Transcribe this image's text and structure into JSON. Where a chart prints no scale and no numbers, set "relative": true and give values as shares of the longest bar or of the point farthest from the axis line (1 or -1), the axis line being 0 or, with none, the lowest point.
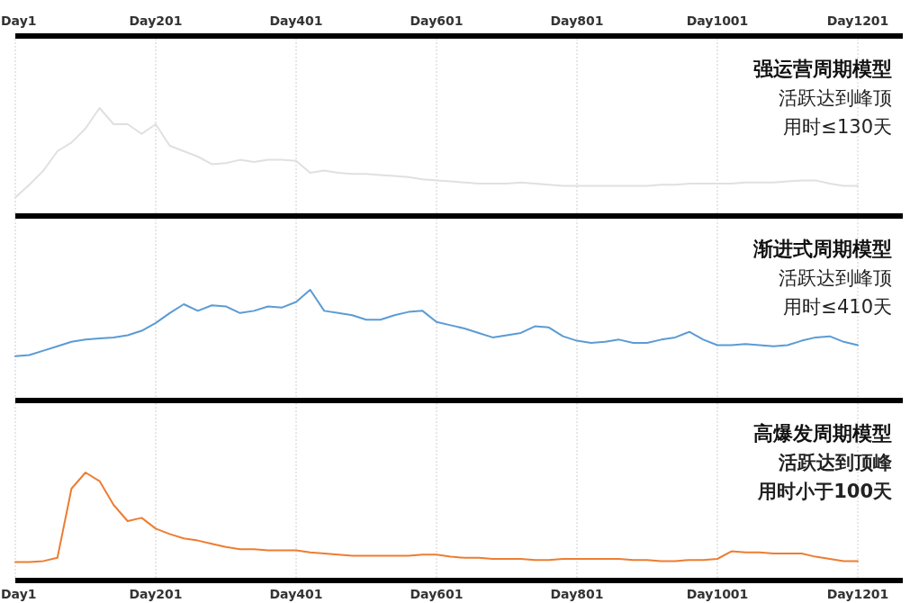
{
  "chart_data": [
    {
      "type": "line",
      "relative": true,
      "title": "强运营周期模型",
      "annotations": [
        "活跃达到峰顶",
        "用时≤130天"
      ],
      "grid": "x",
      "categories": [
        "Day1",
        null,
        null,
        null,
        null,
        null,
        null,
        null,
        null,
        null,
        "Day201",
        null,
        null,
        null,
        null,
        null,
        null,
        null,
        null,
        null,
        "Day401",
        null,
        null,
        null,
        null,
        null,
        null,
        null,
        null,
        null,
        "Day601",
        null,
        null,
        null,
        null,
        null,
        null,
        null,
        null,
        null,
        "Day801",
        null,
        null,
        null,
        null,
        null,
        null,
        null,
        null,
        null,
        "Day1001",
        null,
        null,
        null,
        null,
        null,
        null,
        null,
        null,
        null,
        "Day1201"
      ],
      "series": [
        {
          "color": "#e0e0e0",
          "values": [
            0.17,
            0.29,
            0.42,
            0.6,
            0.68,
            0.81,
            1,
            0.85,
            0.85,
            0.76,
            0.85,
            0.65,
            0.6,
            0.55,
            0.48,
            0.49,
            0.52,
            0.5,
            0.52,
            0.52,
            0.51,
            0.4,
            0.42,
            0.4,
            0.39,
            0.39,
            0.38,
            0.37,
            0.36,
            0.34,
            0.33,
            0.32,
            0.31,
            0.3,
            0.3,
            0.3,
            0.31,
            0.3,
            0.29,
            0.28,
            0.28,
            0.28,
            0.28,
            0.28,
            0.28,
            0.28,
            0.29,
            0.29,
            0.3,
            0.3,
            0.3,
            0.3,
            0.31,
            0.31,
            0.31,
            0.32,
            0.33,
            0.33,
            0.3,
            0.28,
            0.28
          ]
        }
      ]
    },
    {
      "type": "line",
      "relative": true,
      "title": "渐进式周期模型",
      "annotations": [
        "活跃达到峰顶",
        "用时≤410天"
      ],
      "grid": "x",
      "categories": [
        null,
        null,
        null,
        null,
        null,
        null,
        null,
        null,
        null,
        null,
        null,
        null,
        null,
        null,
        null,
        null,
        null,
        null,
        null,
        null,
        null,
        null,
        null,
        null,
        null,
        null,
        null,
        null,
        null,
        null,
        null,
        null,
        null,
        null,
        null,
        null,
        null,
        null,
        null,
        null,
        null,
        null,
        null,
        null,
        null,
        null,
        null,
        null,
        null,
        null,
        null,
        null,
        null,
        null,
        null,
        null,
        null,
        null,
        null,
        null,
        null
      ],
      "series": [
        {
          "color": "#5b9bd5",
          "values": [
            0.4,
            0.41,
            0.45,
            0.49,
            0.53,
            0.55,
            0.56,
            0.57,
            0.59,
            0.63,
            0.7,
            0.79,
            0.87,
            0.81,
            0.86,
            0.85,
            0.79,
            0.81,
            0.85,
            0.84,
            0.89,
            1,
            0.81,
            0.79,
            0.77,
            0.73,
            0.73,
            0.77,
            0.8,
            0.81,
            0.71,
            0.68,
            0.65,
            0.61,
            0.57,
            0.59,
            0.61,
            0.67,
            0.66,
            0.58,
            0.54,
            0.52,
            0.53,
            0.55,
            0.52,
            0.52,
            0.55,
            0.57,
            0.62,
            0.55,
            0.5,
            0.5,
            0.51,
            0.5,
            0.49,
            0.5,
            0.54,
            0.57,
            0.58,
            0.53,
            0.5
          ]
        }
      ]
    },
    {
      "type": "line",
      "relative": true,
      "title": "高爆发周期模型",
      "annotations": [
        "活跃达到顶峰",
        "用时小于100天"
      ],
      "grid": "x",
      "categories": [
        "Day1",
        null,
        null,
        null,
        null,
        null,
        null,
        null,
        null,
        null,
        "Day201",
        null,
        null,
        null,
        null,
        null,
        null,
        null,
        null,
        null,
        "Day401",
        null,
        null,
        null,
        null,
        null,
        null,
        null,
        null,
        null,
        "Day601",
        null,
        null,
        null,
        null,
        null,
        null,
        null,
        null,
        null,
        "Day801",
        null,
        null,
        null,
        null,
        null,
        null,
        null,
        null,
        null,
        "Day1001",
        null,
        null,
        null,
        null,
        null,
        null,
        null,
        null,
        null,
        "Day1201"
      ],
      "series": [
        {
          "color": "#ed7d31",
          "values": [
            0.17,
            0.17,
            0.18,
            0.21,
            0.85,
            1,
            0.92,
            0.7,
            0.55,
            0.58,
            0.48,
            0.43,
            0.39,
            0.37,
            0.34,
            0.31,
            0.29,
            0.29,
            0.28,
            0.28,
            0.28,
            0.26,
            0.25,
            0.24,
            0.23,
            0.23,
            0.23,
            0.23,
            0.23,
            0.24,
            0.24,
            0.22,
            0.21,
            0.21,
            0.2,
            0.2,
            0.2,
            0.19,
            0.19,
            0.2,
            0.2,
            0.2,
            0.2,
            0.2,
            0.19,
            0.19,
            0.18,
            0.18,
            0.19,
            0.19,
            0.2,
            0.27,
            0.26,
            0.26,
            0.25,
            0.25,
            0.25,
            0.22,
            0.2,
            0.18,
            0.18
          ]
        }
      ]
    }
  ]
}
